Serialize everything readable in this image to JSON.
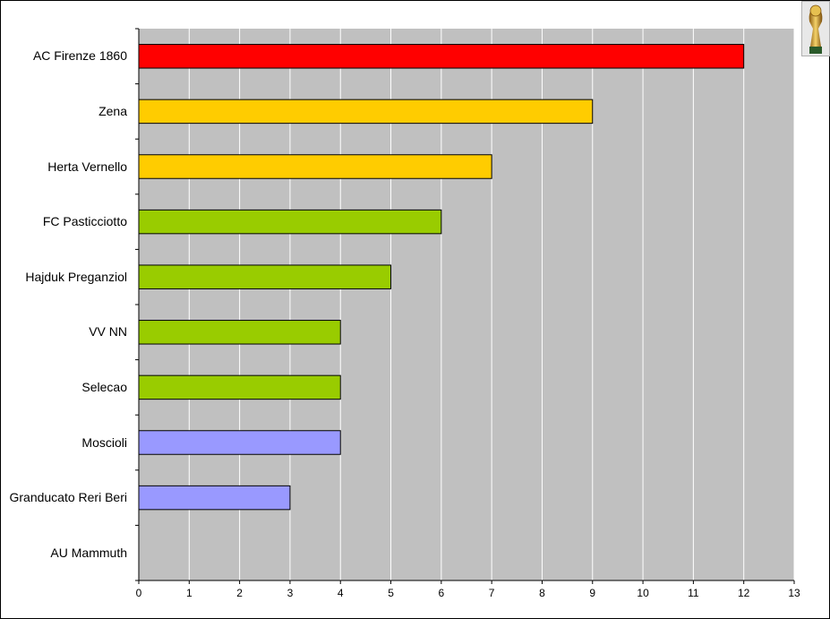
{
  "chart_data": {
    "type": "bar",
    "orientation": "horizontal",
    "categories": [
      "AC Firenze 1860",
      "Zena",
      "Herta Vernello",
      "FC Pasticciotto",
      "Hajduk Preganziol",
      "VV NN",
      "Selecao",
      "Moscioli",
      "Granducato Reri Beri",
      "AU Mammuth"
    ],
    "values": [
      12,
      9,
      7,
      6,
      5,
      4,
      4,
      4,
      3,
      0
    ],
    "bar_colors": [
      "#ff0000",
      "#ffcc00",
      "#ffcc00",
      "#99cc00",
      "#99cc00",
      "#99cc00",
      "#99cc00",
      "#9999ff",
      "#9999ff",
      "#9999ff"
    ],
    "xlim": [
      0,
      13
    ],
    "xticks": [
      "0",
      "1",
      "2",
      "3",
      "4",
      "5",
      "6",
      "7",
      "8",
      "9",
      "10",
      "11",
      "12",
      "13"
    ],
    "grid": true,
    "plot_background": "#c0c0c0",
    "gridline_color": "#ffffff",
    "title": "",
    "xlabel": "",
    "ylabel": ""
  },
  "logo": {
    "icon": "world-cup-trophy-icon"
  }
}
